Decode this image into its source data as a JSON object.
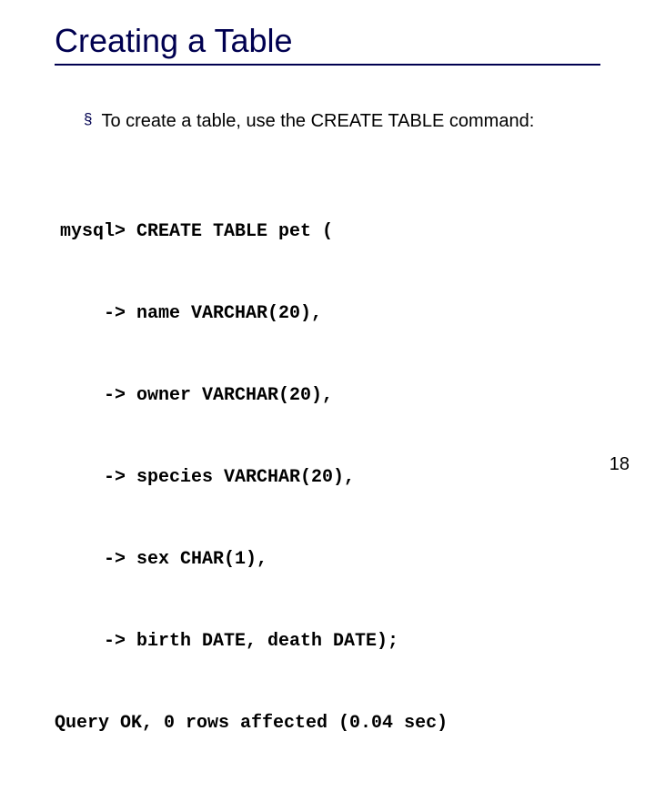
{
  "slide": {
    "title": "Creating a Table",
    "title_color": "#000050",
    "title_fontsize": 36,
    "underline_color": "#000050",
    "bullet": {
      "marker": "§",
      "text": "To create a table, use the CREATE TABLE command:",
      "fontsize": 20
    },
    "code": {
      "fontfamily": "Courier New",
      "fontsize": 20,
      "fontweight": "bold",
      "lines": [
        {
          "prompt": "mysql>",
          "content": "CREATE TABLE pet ("
        },
        {
          "prompt": "->",
          "content": "name VARCHAR(20),"
        },
        {
          "prompt": "->",
          "content": "owner VARCHAR(20),"
        },
        {
          "prompt": "->",
          "content": "species VARCHAR(20),"
        },
        {
          "prompt": "->",
          "content": "sex CHAR(1),"
        },
        {
          "prompt": "->",
          "content": "birth DATE, death DATE);"
        }
      ],
      "result": "Query OK, 0 rows affected (0.04 sec)"
    },
    "page_number": "18",
    "background_color": "#ffffff"
  }
}
